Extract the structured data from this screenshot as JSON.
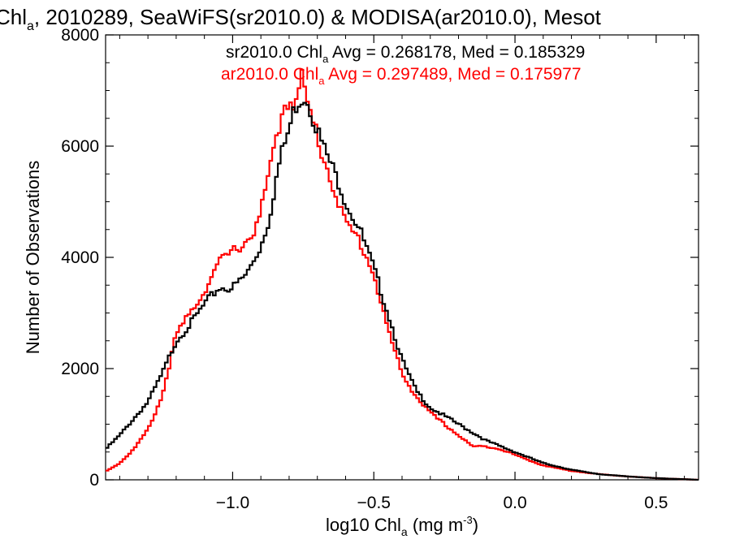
{
  "chart_data": {
    "type": "line",
    "title_prefix": "Chl",
    "title_sub": "a",
    "title_suffix": ", 2010289, SeaWiFS(sr2010.0) & MODISA(ar2010.0), Mesot",
    "xlabel_prefix": "log10 Chl",
    "xlabel_sub": "a",
    "xlabel_suffix": " (mg m",
    "xlabel_sup": "-3",
    "xlabel_close": ")",
    "ylabel": "Number of Observations",
    "xlim": [
      -1.45,
      0.65
    ],
    "ylim": [
      0,
      8000
    ],
    "xticks": [
      -1.0,
      -0.5,
      0.0,
      0.5
    ],
    "xtick_labels": [
      "−1.0",
      "−0.5",
      "0.0",
      "0.5"
    ],
    "yticks": [
      0,
      2000,
      4000,
      6000,
      8000
    ],
    "ytick_labels": [
      "0",
      "2000",
      "4000",
      "6000",
      "8000"
    ],
    "grid": false,
    "series": [
      {
        "name": "sr2010.0",
        "color": "#000000",
        "stat_prefix": "sr2010.0 Chl",
        "stat_sub": "a",
        "stat_suffix": " Avg = 0.268178, Med = 0.185329",
        "x": [
          -1.45,
          -1.4,
          -1.35,
          -1.3,
          -1.25,
          -1.2,
          -1.15,
          -1.1,
          -1.05,
          -1.0,
          -0.95,
          -0.9,
          -0.87,
          -0.85,
          -0.83,
          -0.8,
          -0.78,
          -0.76,
          -0.74,
          -0.72,
          -0.7,
          -0.68,
          -0.65,
          -0.62,
          -0.6,
          -0.55,
          -0.5,
          -0.45,
          -0.4,
          -0.35,
          -0.3,
          -0.25,
          -0.2,
          -0.15,
          -0.1,
          -0.05,
          0.0,
          0.05,
          0.1,
          0.2,
          0.3,
          0.4,
          0.5,
          0.6,
          0.65
        ],
        "y": [
          550,
          800,
          1100,
          1400,
          1900,
          2500,
          2800,
          3150,
          3450,
          3450,
          3700,
          4200,
          4700,
          5300,
          5800,
          6300,
          6700,
          6850,
          6900,
          6600,
          6300,
          6000,
          5650,
          5300,
          5000,
          4500,
          3800,
          3000,
          2150,
          1600,
          1300,
          1150,
          1000,
          850,
          700,
          600,
          500,
          400,
          300,
          180,
          100,
          60,
          30,
          10,
          0
        ]
      },
      {
        "name": "ar2010.0",
        "color": "#ff0000",
        "stat_prefix": "ar2010.0 Chl",
        "stat_sub": "a",
        "stat_suffix": " Avg = 0.297489, Med = 0.175977",
        "x": [
          -1.45,
          -1.4,
          -1.35,
          -1.3,
          -1.25,
          -1.2,
          -1.15,
          -1.1,
          -1.05,
          -1.0,
          -0.95,
          -0.92,
          -0.9,
          -0.88,
          -0.85,
          -0.82,
          -0.8,
          -0.78,
          -0.76,
          -0.755,
          -0.74,
          -0.72,
          -0.7,
          -0.68,
          -0.65,
          -0.62,
          -0.6,
          -0.55,
          -0.5,
          -0.45,
          -0.4,
          -0.35,
          -0.3,
          -0.25,
          -0.2,
          -0.15,
          -0.1,
          -0.05,
          0.0,
          0.05,
          0.1,
          0.2,
          0.3,
          0.4,
          0.5,
          0.6,
          0.65
        ],
        "y": [
          150,
          300,
          550,
          900,
          1500,
          2600,
          3000,
          3400,
          3900,
          4100,
          4300,
          4500,
          4800,
          5300,
          6000,
          6700,
          6850,
          6800,
          7000,
          7300,
          6800,
          6500,
          6200,
          5800,
          5400,
          4900,
          4600,
          4300,
          3700,
          2700,
          1900,
          1500,
          1200,
          1000,
          800,
          600,
          600,
          550,
          450,
          350,
          260,
          160,
          100,
          60,
          30,
          10,
          0
        ]
      }
    ]
  }
}
